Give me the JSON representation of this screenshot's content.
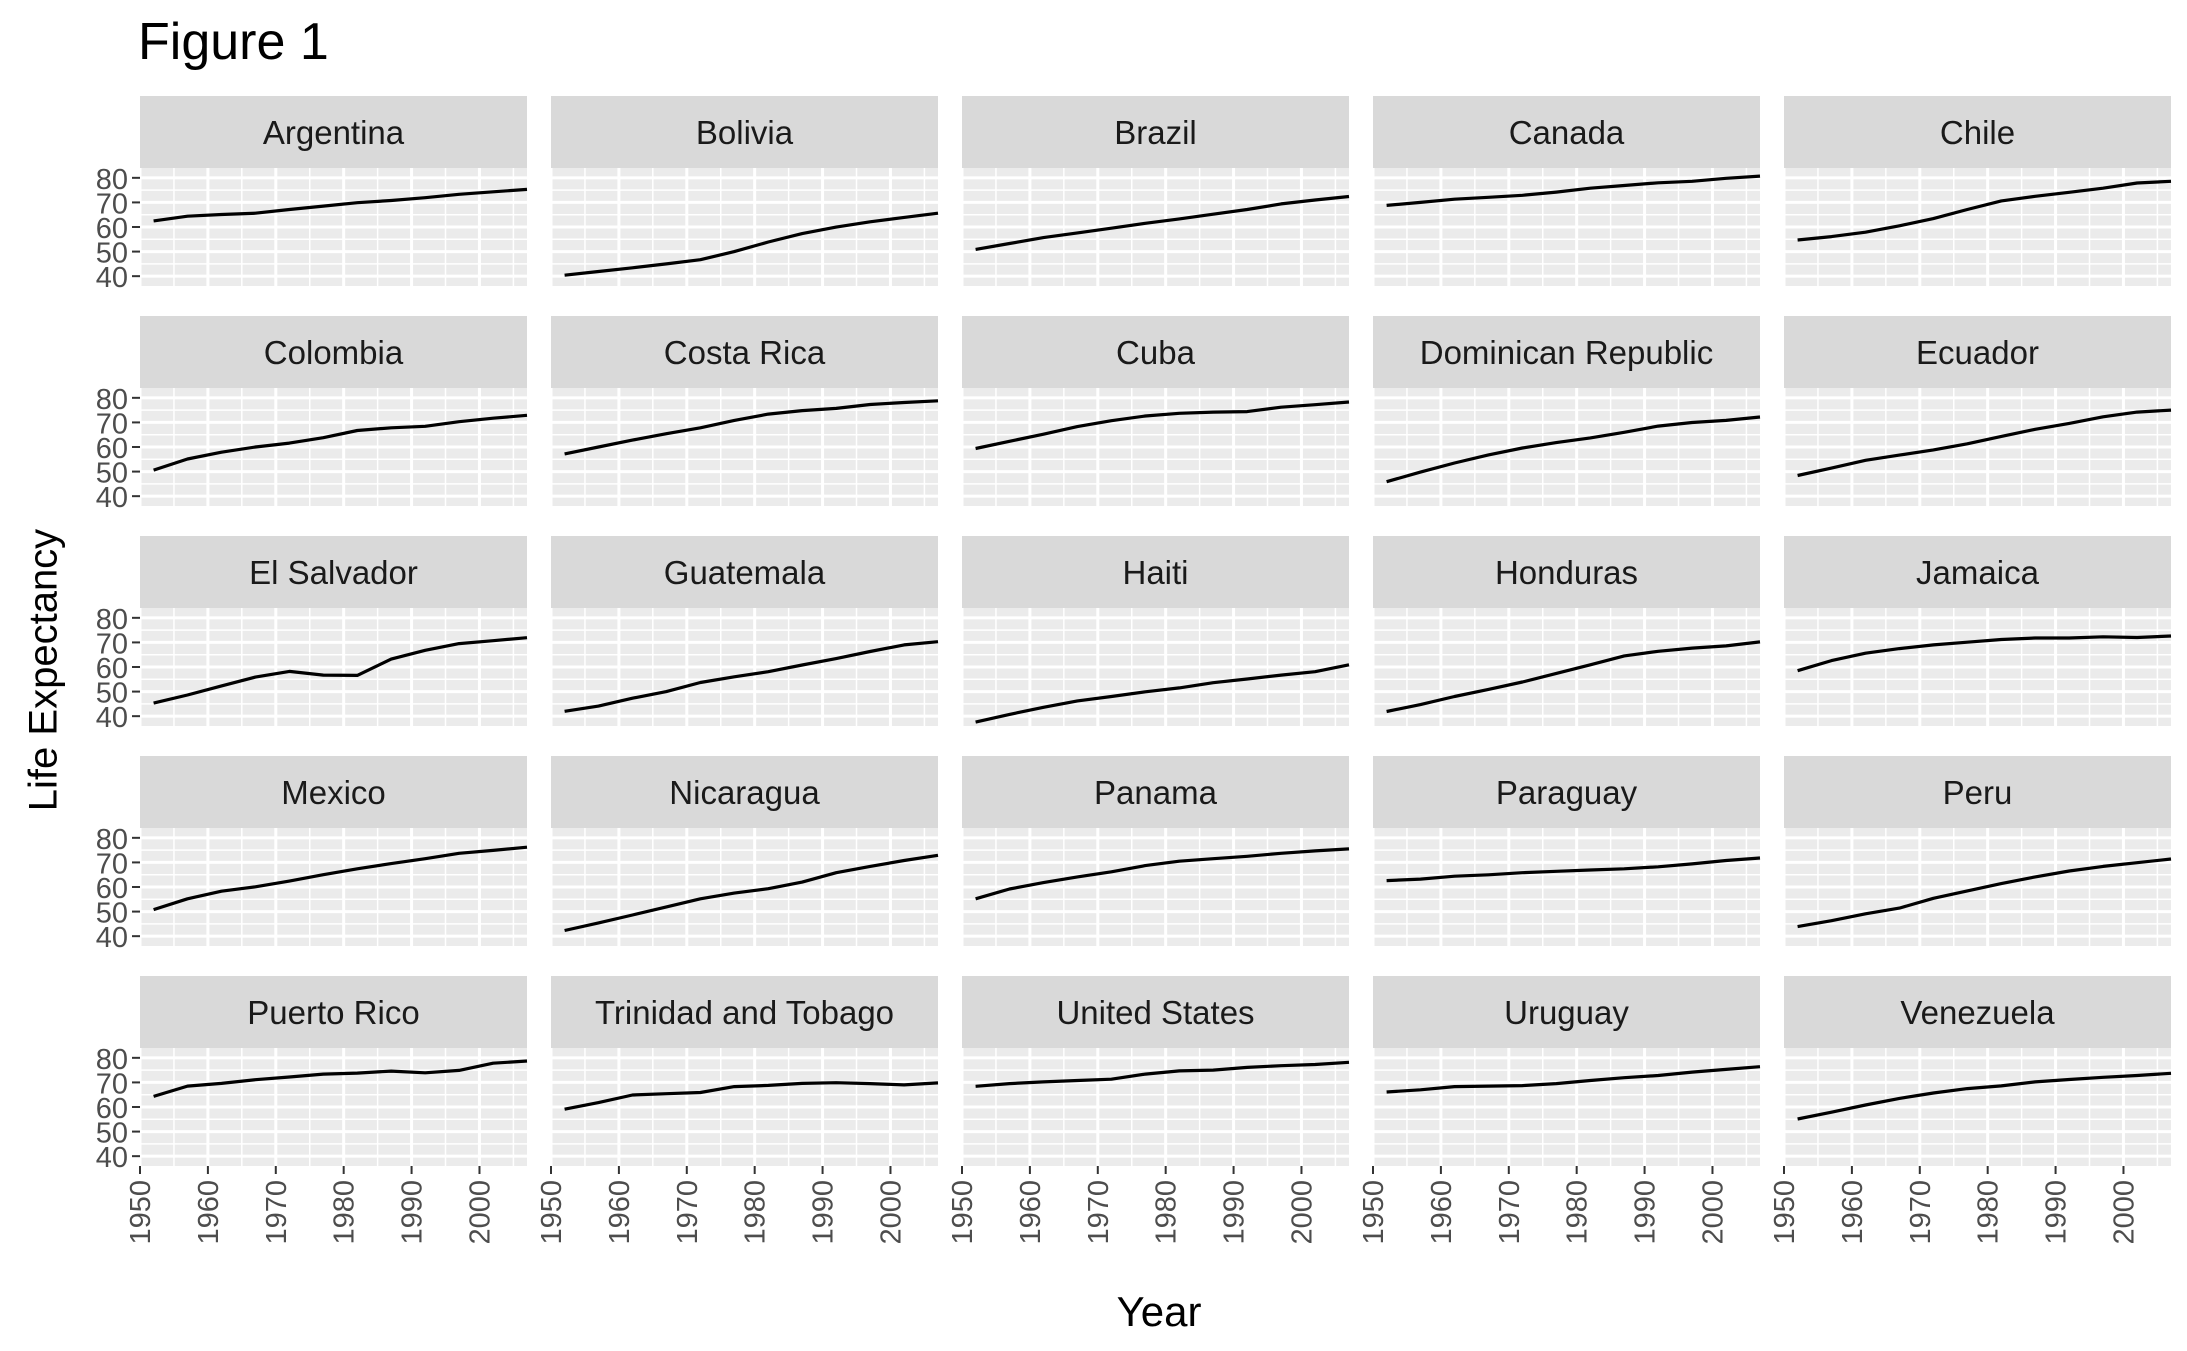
{
  "title": "Figure 1",
  "chart_data": {
    "type": "line",
    "layout": "facet-grid-5x5",
    "xlabel": "Year",
    "ylabel": "Life Expectancy",
    "xlim": [
      1950,
      2007
    ],
    "ylim": [
      36,
      84
    ],
    "xticks": [
      1950,
      1960,
      1970,
      1980,
      1990,
      2000
    ],
    "yticks": [
      40,
      50,
      60,
      70,
      80
    ],
    "grid": true,
    "colors": {
      "panel_bg": "#ebebeb",
      "strip_bg": "#d9d9d9",
      "grid": "#ffffff",
      "line": "#000000",
      "axis_text": "#4d4d4d"
    },
    "x": [
      1952,
      1957,
      1962,
      1967,
      1972,
      1977,
      1982,
      1987,
      1992,
      1997,
      2002,
      2007
    ],
    "series": [
      {
        "name": "Argentina",
        "values": [
          62.5,
          64.4,
          65.1,
          65.6,
          67.1,
          68.5,
          69.9,
          70.8,
          71.9,
          73.3,
          74.3,
          75.3
        ]
      },
      {
        "name": "Bolivia",
        "values": [
          40.4,
          41.9,
          43.4,
          45.0,
          46.7,
          50.0,
          53.9,
          57.3,
          59.96,
          62.1,
          63.9,
          65.6
        ]
      },
      {
        "name": "Brazil",
        "values": [
          50.9,
          53.3,
          55.7,
          57.6,
          59.5,
          61.5,
          63.3,
          65.2,
          67.1,
          69.4,
          71.0,
          72.4
        ]
      },
      {
        "name": "Canada",
        "values": [
          68.8,
          70.0,
          71.3,
          72.1,
          72.9,
          74.2,
          75.8,
          76.9,
          78.0,
          78.6,
          79.8,
          80.7
        ]
      },
      {
        "name": "Chile",
        "values": [
          54.7,
          56.1,
          57.9,
          60.5,
          63.4,
          67.1,
          70.6,
          72.5,
          74.1,
          75.8,
          77.9,
          78.6
        ]
      },
      {
        "name": "Colombia",
        "values": [
          50.6,
          55.1,
          57.9,
          60.0,
          61.6,
          63.8,
          66.7,
          67.8,
          68.4,
          70.3,
          71.7,
          72.9
        ]
      },
      {
        "name": "Costa Rica",
        "values": [
          57.2,
          60.0,
          62.8,
          65.4,
          67.8,
          70.8,
          73.4,
          74.8,
          75.7,
          77.3,
          78.1,
          78.8
        ]
      },
      {
        "name": "Cuba",
        "values": [
          59.4,
          62.3,
          65.2,
          68.3,
          70.7,
          72.6,
          73.7,
          74.2,
          74.4,
          76.2,
          77.2,
          78.3
        ]
      },
      {
        "name": "Dominican Republic",
        "values": [
          45.9,
          49.8,
          53.5,
          56.8,
          59.6,
          61.8,
          63.7,
          66.0,
          68.5,
          69.96,
          70.8,
          72.2
        ]
      },
      {
        "name": "Ecuador",
        "values": [
          48.4,
          51.4,
          54.6,
          56.7,
          58.8,
          61.3,
          64.3,
          67.2,
          69.6,
          72.3,
          74.2,
          75.0
        ]
      },
      {
        "name": "El Salvador",
        "values": [
          45.3,
          48.6,
          52.3,
          55.9,
          58.2,
          56.7,
          56.6,
          63.2,
          66.8,
          69.5,
          70.7,
          71.9
        ]
      },
      {
        "name": "Guatemala",
        "values": [
          42.0,
          44.1,
          47.3,
          50.0,
          53.7,
          56.0,
          58.1,
          60.8,
          63.4,
          66.3,
          68.98,
          70.3
        ]
      },
      {
        "name": "Haiti",
        "values": [
          37.6,
          40.7,
          43.6,
          46.2,
          48.0,
          49.9,
          51.5,
          53.6,
          55.1,
          56.7,
          58.1,
          60.9
        ]
      },
      {
        "name": "Honduras",
        "values": [
          41.9,
          44.7,
          48.0,
          50.9,
          53.9,
          57.4,
          60.9,
          64.5,
          66.4,
          67.7,
          68.6,
          70.2
        ]
      },
      {
        "name": "Jamaica",
        "values": [
          58.5,
          62.6,
          65.6,
          67.5,
          69.0,
          70.1,
          71.2,
          71.8,
          71.8,
          72.3,
          72.0,
          72.6
        ]
      },
      {
        "name": "Mexico",
        "values": [
          50.8,
          55.2,
          58.3,
          60.1,
          62.4,
          65.0,
          67.4,
          69.5,
          71.5,
          73.7,
          74.9,
          76.2
        ]
      },
      {
        "name": "Nicaragua",
        "values": [
          42.3,
          45.4,
          48.6,
          51.9,
          55.2,
          57.5,
          59.3,
          62.0,
          65.8,
          68.4,
          70.8,
          72.9
        ]
      },
      {
        "name": "Panama",
        "values": [
          55.2,
          59.2,
          61.8,
          64.1,
          66.2,
          68.7,
          70.5,
          71.5,
          72.5,
          73.7,
          74.7,
          75.5
        ]
      },
      {
        "name": "Paraguay",
        "values": [
          62.6,
          63.2,
          64.4,
          64.95,
          65.8,
          66.4,
          66.9,
          67.4,
          68.2,
          69.4,
          70.8,
          71.8
        ]
      },
      {
        "name": "Peru",
        "values": [
          43.9,
          46.3,
          49.1,
          51.4,
          55.4,
          58.4,
          61.4,
          64.1,
          66.5,
          68.4,
          69.9,
          71.4
        ]
      },
      {
        "name": "Puerto Rico",
        "values": [
          64.3,
          68.5,
          69.6,
          71.1,
          72.2,
          73.4,
          73.8,
          74.6,
          73.9,
          74.9,
          77.8,
          78.7
        ]
      },
      {
        "name": "Trinidad and Tobago",
        "values": [
          59.1,
          61.8,
          64.9,
          65.4,
          65.9,
          68.3,
          68.8,
          69.6,
          69.9,
          69.5,
          68.98,
          69.8
        ]
      },
      {
        "name": "United States",
        "values": [
          68.4,
          69.5,
          70.2,
          70.8,
          71.3,
          73.4,
          74.7,
          75.0,
          76.1,
          76.8,
          77.3,
          78.2
        ]
      },
      {
        "name": "Uruguay",
        "values": [
          66.1,
          67.0,
          68.3,
          68.5,
          68.7,
          69.5,
          70.8,
          71.9,
          72.8,
          74.2,
          75.3,
          76.4
        ]
      },
      {
        "name": "Venezuela",
        "values": [
          55.1,
          57.9,
          60.8,
          63.5,
          65.7,
          67.5,
          68.6,
          70.2,
          71.2,
          72.1,
          72.8,
          73.7
        ]
      }
    ]
  }
}
